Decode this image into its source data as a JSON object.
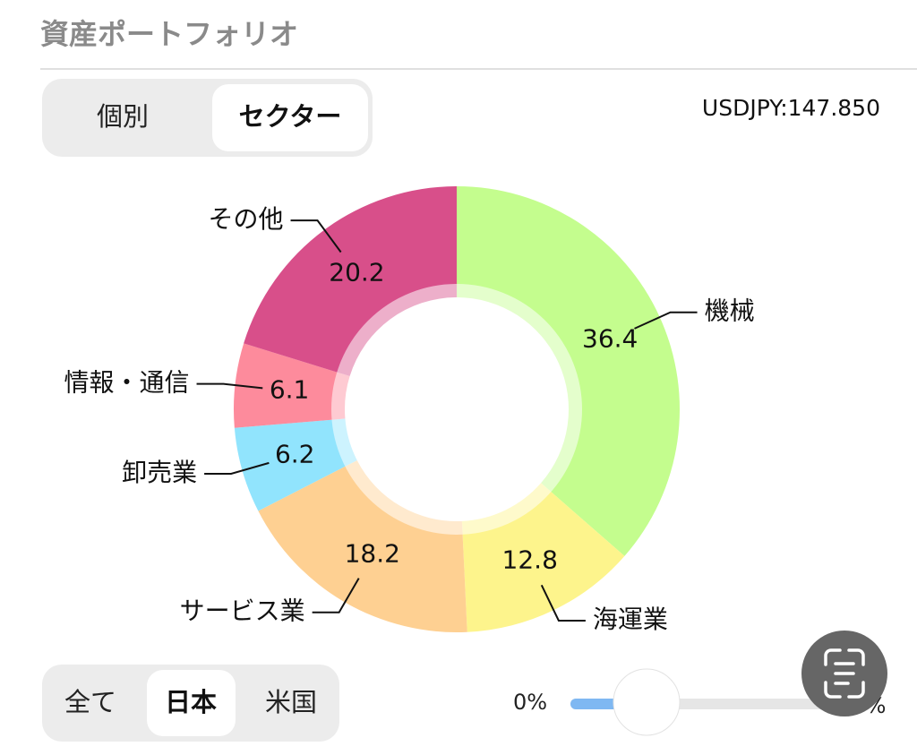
{
  "header": {
    "title": "資産ポートフォリオ"
  },
  "view_tabs": {
    "items": [
      "個別",
      "セクター"
    ],
    "selected": 1
  },
  "rate": "USDJPY:147.850",
  "chart_data": {
    "type": "donut",
    "categories": [
      "機械",
      "海運業",
      "サービス業",
      "卸売業",
      "情報・通信",
      "その他"
    ],
    "values": [
      36.4,
      12.8,
      18.2,
      6.2,
      6.1,
      20.2
    ],
    "colors": [
      "#c4fd8e",
      "#fdf48c",
      "#fed092",
      "#91e4fd",
      "#fd8b9c",
      "#d84f8a"
    ]
  },
  "market_tabs": {
    "items": [
      "全て",
      "日本",
      "米国"
    ],
    "selected": 1
  },
  "slider": {
    "min_label": "0%",
    "max_label": "%"
  }
}
